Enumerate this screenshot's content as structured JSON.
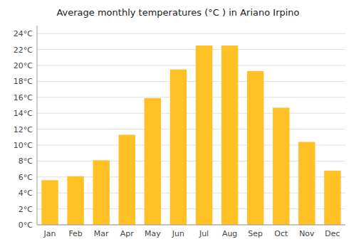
{
  "chart_data": {
    "type": "bar",
    "title": "Average monthly temperatures (°C ) in Ariano Irpino",
    "categories": [
      "Jan",
      "Feb",
      "Mar",
      "Apr",
      "May",
      "Jun",
      "Jul",
      "Aug",
      "Sep",
      "Oct",
      "Nov",
      "Dec"
    ],
    "values": [
      5.6,
      6.1,
      8.1,
      11.3,
      15.9,
      19.5,
      22.5,
      22.5,
      19.3,
      14.7,
      10.4,
      6.8
    ],
    "color": "#FFC125",
    "ylim": [
      0,
      25
    ],
    "yticks": [
      {
        "value": 0,
        "label": "0°C"
      },
      {
        "value": 2,
        "label": "2°C"
      },
      {
        "value": 4,
        "label": "4°C"
      },
      {
        "value": 6,
        "label": "6°C"
      },
      {
        "value": 8,
        "label": "8°C"
      },
      {
        "value": 10,
        "label": "10°C"
      },
      {
        "value": 12,
        "label": "12°C"
      },
      {
        "value": 14,
        "label": "14°C"
      },
      {
        "value": 16,
        "label": "16°C"
      },
      {
        "value": 18,
        "label": "18°C"
      },
      {
        "value": 20,
        "label": "20°C"
      },
      {
        "value": 22,
        "label": "22°C"
      },
      {
        "value": 24,
        "label": "24°C"
      }
    ],
    "grid": true
  }
}
